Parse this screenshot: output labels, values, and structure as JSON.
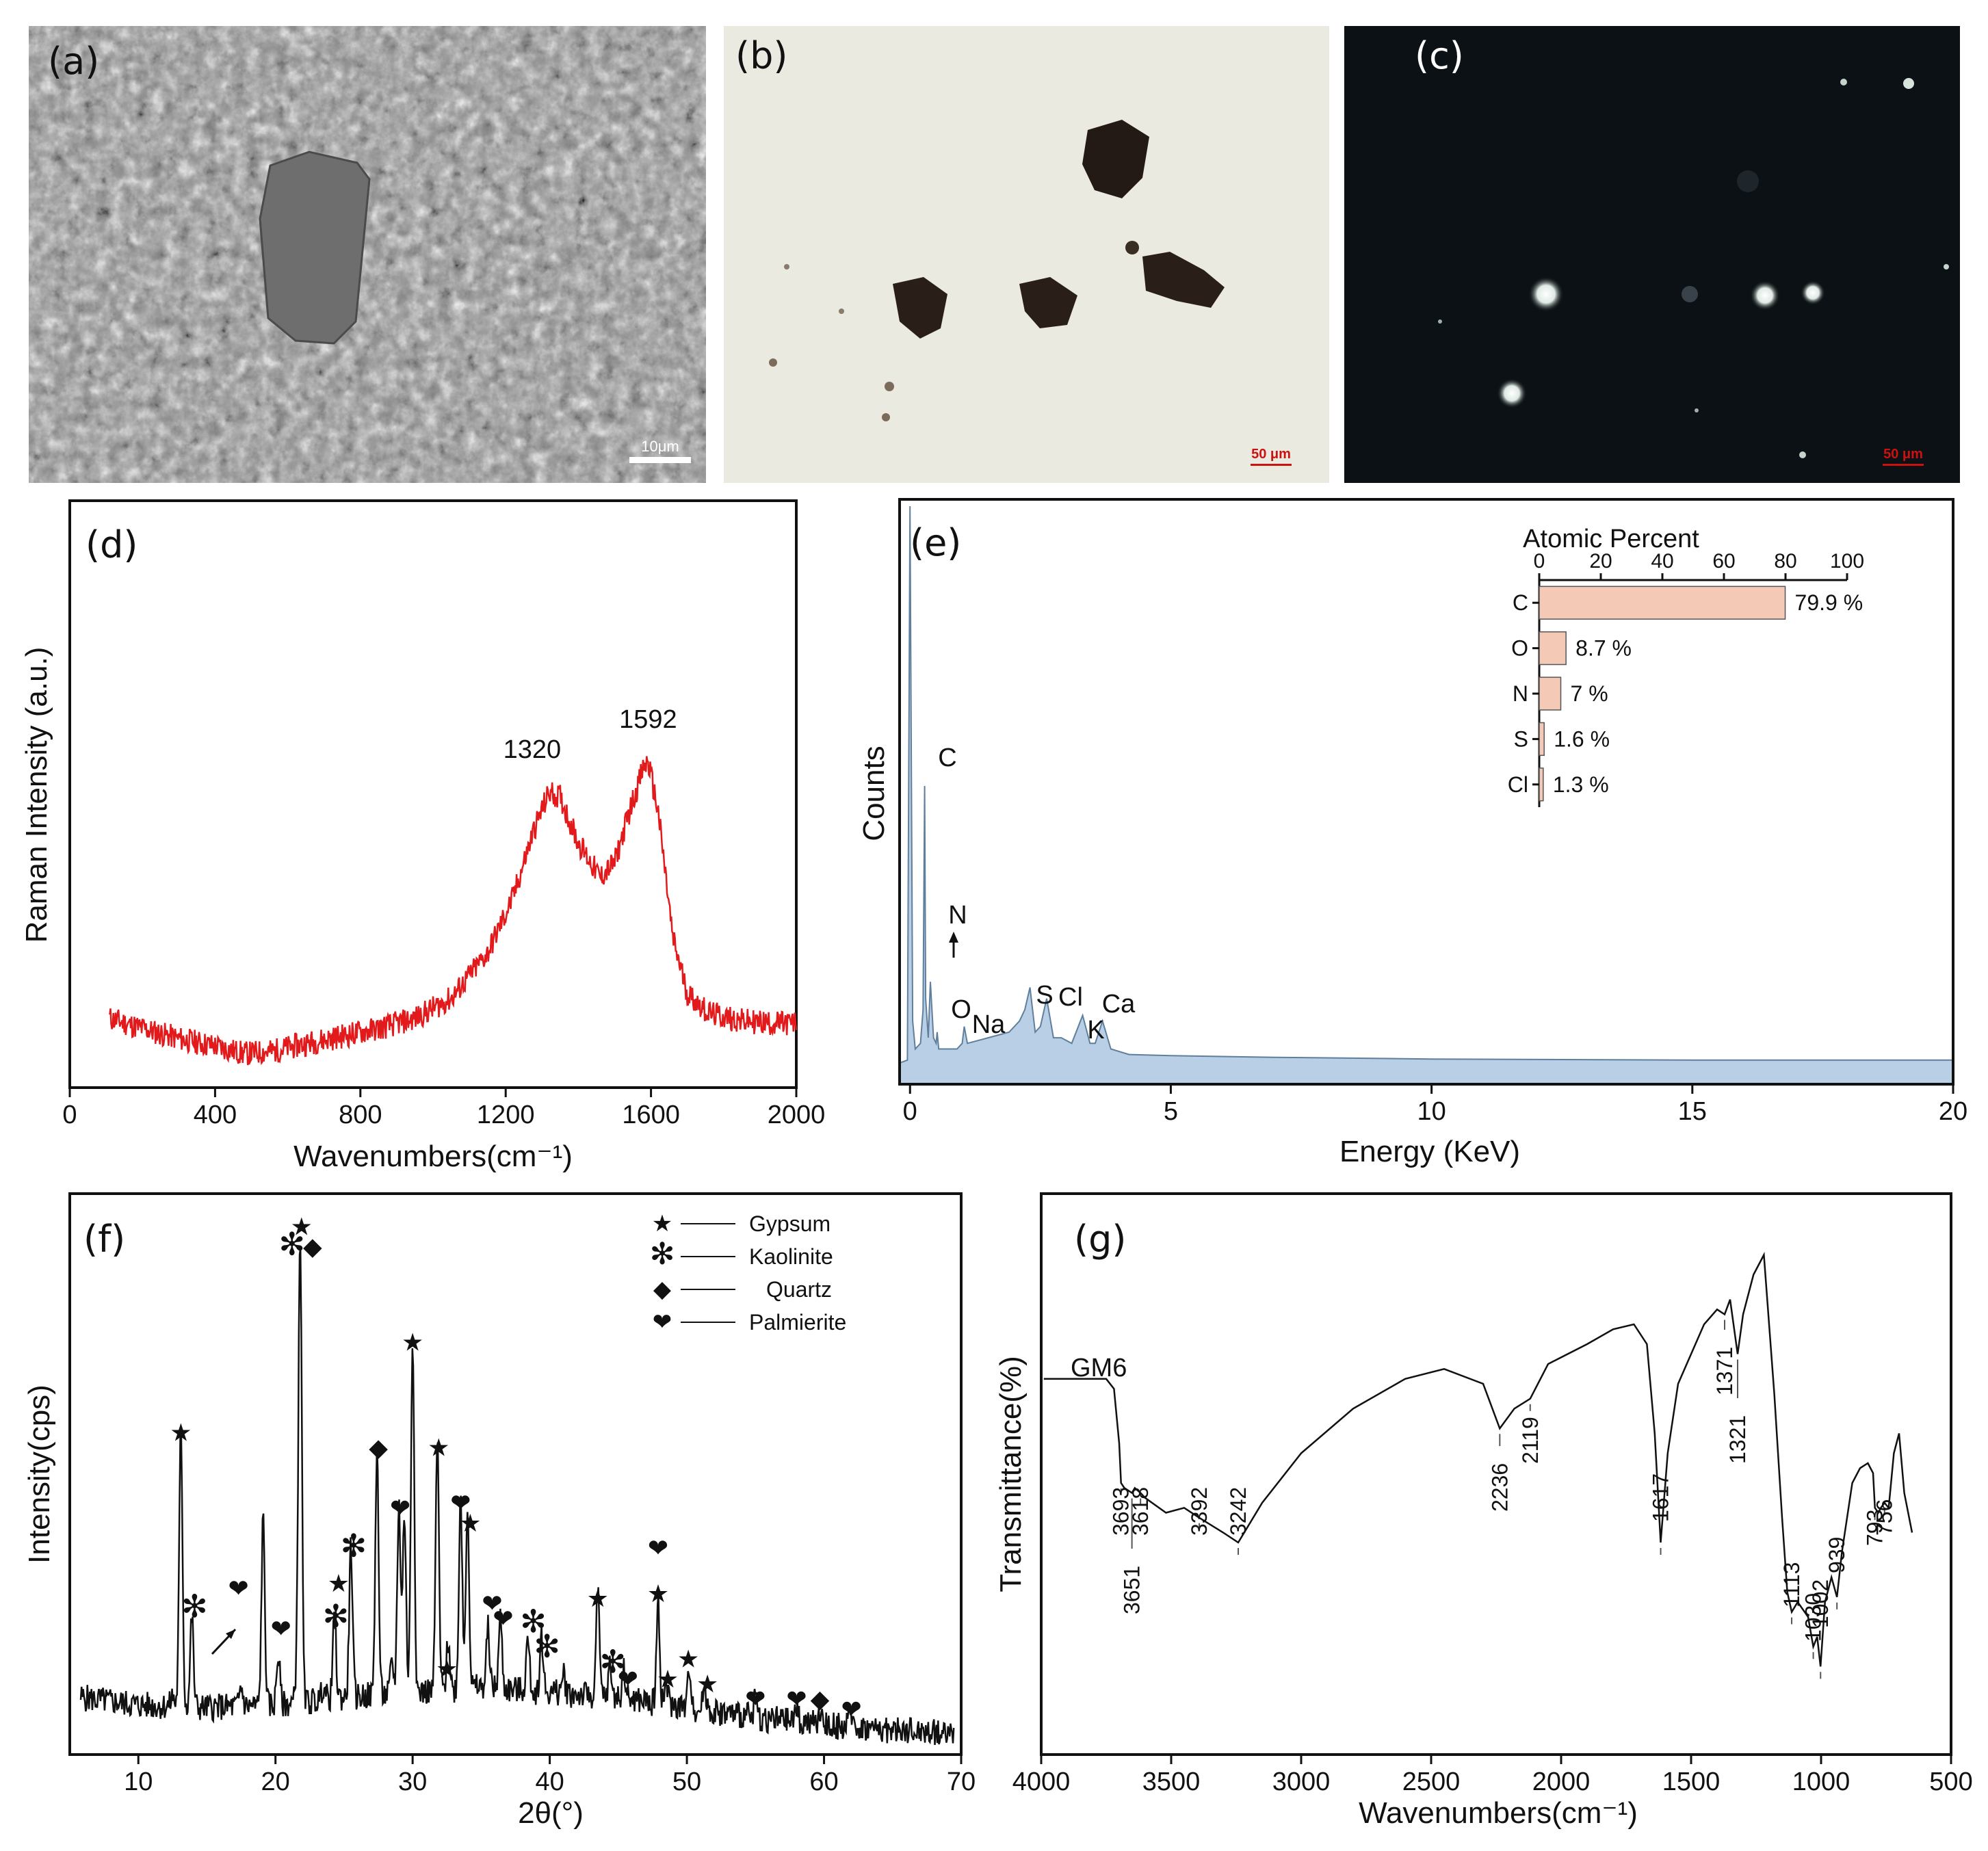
{
  "panels": {
    "a": {
      "label": "(a)",
      "scalebar": "10μm"
    },
    "b": {
      "label": "(b)",
      "scalebar": "50 μm"
    },
    "c": {
      "label": "(c)",
      "scalebar": "50 μm"
    }
  },
  "colors": {
    "raman": "#e31a1c",
    "eds_fill": "#b9cfe6",
    "eds_line": "#5f7f9c",
    "bar": "#f4c9b6"
  },
  "chart_data": [
    {
      "id": "d",
      "type": "line",
      "panel_label": "(d)",
      "xlabel": "Wavenumbers(cm⁻¹)",
      "ylabel": "Raman Intensity (a.u.)",
      "xlim": [
        0,
        2000
      ],
      "xticks": [
        0,
        400,
        800,
        1200,
        1600,
        2000
      ],
      "ylim": [
        0,
        1
      ],
      "series": [
        {
          "x": [
            110,
            200,
            300,
            400,
            480,
            560,
            650,
            750,
            850,
            950,
            1050,
            1150,
            1220,
            1280,
            1320,
            1350,
            1400,
            1460,
            1500,
            1540,
            1580,
            1592,
            1620,
            1660,
            1700,
            1760,
            1850,
            1950,
            2000
          ],
          "y": [
            0.09,
            0.07,
            0.05,
            0.035,
            0.02,
            0.025,
            0.04,
            0.055,
            0.07,
            0.09,
            0.13,
            0.22,
            0.33,
            0.47,
            0.54,
            0.53,
            0.44,
            0.37,
            0.4,
            0.5,
            0.59,
            0.6,
            0.5,
            0.25,
            0.14,
            0.1,
            0.085,
            0.08,
            0.08
          ]
        }
      ],
      "peak_labels": [
        {
          "x": 1320,
          "text": "1320"
        },
        {
          "x": 1592,
          "text": "1592"
        }
      ]
    },
    {
      "id": "e",
      "type": "area",
      "panel_label": "(e)",
      "xlabel": "Energy (KeV)",
      "ylabel": "Counts",
      "xlim": [
        -0.2,
        20
      ],
      "xticks": [
        0,
        5,
        10,
        15,
        20
      ],
      "ylim": [
        0,
        1
      ],
      "series": [
        {
          "x": [
            -0.2,
            -0.05,
            0.0,
            0.05,
            0.1,
            0.2,
            0.25,
            0.28,
            0.3,
            0.35,
            0.39,
            0.45,
            0.5,
            0.52,
            0.55,
            0.7,
            0.9,
            1.0,
            1.04,
            1.1,
            1.3,
            1.5,
            1.7,
            1.9,
            2.1,
            2.2,
            2.3,
            2.4,
            2.5,
            2.62,
            2.75,
            2.9,
            3.1,
            3.31,
            3.45,
            3.55,
            3.69,
            3.85,
            4.2,
            5,
            7,
            10,
            15,
            20
          ],
          "y": [
            0.005,
            0.01,
            1.0,
            0.08,
            0.03,
            0.04,
            0.1,
            0.5,
            0.12,
            0.05,
            0.15,
            0.05,
            0.04,
            0.06,
            0.03,
            0.03,
            0.03,
            0.04,
            0.07,
            0.04,
            0.045,
            0.05,
            0.055,
            0.06,
            0.08,
            0.1,
            0.14,
            0.06,
            0.07,
            0.12,
            0.05,
            0.05,
            0.04,
            0.09,
            0.04,
            0.04,
            0.08,
            0.03,
            0.02,
            0.018,
            0.015,
            0.012,
            0.01,
            0.01
          ]
        }
      ],
      "element_labels": [
        "C",
        "N",
        "O",
        "Na",
        "S",
        "Cl",
        "K",
        "Ca"
      ],
      "inset": {
        "type": "bar",
        "title": "Atomic Percent",
        "xlim": [
          0,
          100
        ],
        "xticks": [
          0,
          20,
          40,
          60,
          80,
          100
        ],
        "categories": [
          "C",
          "O",
          "N",
          "S",
          "Cl"
        ],
        "values": [
          79.9,
          8.7,
          7,
          1.6,
          1.3
        ],
        "value_labels": [
          "79.9 %",
          "8.7 %",
          "7 %",
          "1.6 %",
          "1.3 %"
        ]
      }
    },
    {
      "id": "f",
      "type": "line",
      "panel_label": "(f)",
      "xlabel": "2θ(°)",
      "ylabel": "Intensity(cps)",
      "xlim": [
        5,
        70
      ],
      "xticks": [
        10,
        20,
        30,
        40,
        50,
        60,
        70
      ],
      "ylim": [
        0,
        1
      ],
      "legend": {
        "position": "top-right",
        "entries": [
          {
            "symbol": "★",
            "label": "Gypsum"
          },
          {
            "symbol": "✻",
            "label": "Kaolinite"
          },
          {
            "symbol": "◆",
            "label": "Quartz"
          },
          {
            "symbol": "❤",
            "label": "Palmierite"
          }
        ]
      },
      "peaks": [
        [
          12.5,
          0.02
        ],
        [
          13.1,
          0.55
        ],
        [
          13.9,
          0.18
        ],
        [
          17.5,
          0.04
        ],
        [
          19.1,
          0.37
        ],
        [
          20.2,
          0.1
        ],
        [
          21.6,
          0.08
        ],
        [
          21.8,
          0.92
        ],
        [
          23.5,
          0.03
        ],
        [
          24.3,
          0.16
        ],
        [
          25.5,
          0.3
        ],
        [
          27.4,
          0.49
        ],
        [
          28.5,
          0.06
        ],
        [
          29.0,
          0.38
        ],
        [
          29.4,
          0.36
        ],
        [
          30.0,
          0.71
        ],
        [
          31.8,
          0.5
        ],
        [
          32.6,
          0.1
        ],
        [
          33.5,
          0.39
        ],
        [
          34.0,
          0.37
        ],
        [
          35.5,
          0.12
        ],
        [
          36.4,
          0.14
        ],
        [
          38.4,
          0.1
        ],
        [
          39.4,
          0.11
        ],
        [
          41.0,
          0.04
        ],
        [
          43.5,
          0.2
        ],
        [
          44.4,
          0.06
        ],
        [
          45.4,
          0.06
        ],
        [
          47.9,
          0.2
        ],
        [
          48.5,
          0.04
        ],
        [
          50.2,
          0.08
        ],
        [
          51.3,
          0.05
        ],
        [
          55.0,
          0.04
        ],
        [
          58.0,
          0.03
        ],
        [
          59.8,
          0.03
        ],
        [
          62.0,
          0.03
        ]
      ],
      "baseline": [
        [
          5.8,
          0.1
        ],
        [
          10,
          0.085
        ],
        [
          15,
          0.08
        ],
        [
          20,
          0.085
        ],
        [
          25,
          0.1
        ],
        [
          30,
          0.11
        ],
        [
          35,
          0.12
        ],
        [
          40,
          0.11
        ],
        [
          45,
          0.1
        ],
        [
          50,
          0.08
        ],
        [
          55,
          0.06
        ],
        [
          60,
          0.045
        ],
        [
          65,
          0.035
        ],
        [
          69.5,
          0.03
        ]
      ],
      "markers": [
        {
          "x": 13.1,
          "y": 0.61,
          "s": "★"
        },
        {
          "x": 14.1,
          "y": 0.26,
          "s": "✻"
        },
        {
          "x": 17.3,
          "y": 0.3,
          "s": "❤"
        },
        {
          "x": 20.4,
          "y": 0.22,
          "s": "❤"
        },
        {
          "x": 21.9,
          "y": 1.02,
          "s": "★"
        },
        {
          "x": 21.2,
          "y": 0.98,
          "s": "✻"
        },
        {
          "x": 22.7,
          "y": 0.98,
          "s": "◆"
        },
        {
          "x": 24.4,
          "y": 0.24,
          "s": "✻"
        },
        {
          "x": 24.6,
          "y": 0.31,
          "s": "★"
        },
        {
          "x": 25.7,
          "y": 0.38,
          "s": "✻"
        },
        {
          "x": 27.5,
          "y": 0.58,
          "s": "◆"
        },
        {
          "x": 29.1,
          "y": 0.46,
          "s": "❤"
        },
        {
          "x": 30.0,
          "y": 0.79,
          "s": "★"
        },
        {
          "x": 31.9,
          "y": 0.58,
          "s": "★"
        },
        {
          "x": 32.5,
          "y": 0.14,
          "s": "★"
        },
        {
          "x": 33.5,
          "y": 0.47,
          "s": "❤"
        },
        {
          "x": 34.2,
          "y": 0.43,
          "s": "★"
        },
        {
          "x": 35.8,
          "y": 0.27,
          "s": "❤"
        },
        {
          "x": 36.6,
          "y": 0.24,
          "s": "❤"
        },
        {
          "x": 38.8,
          "y": 0.23,
          "s": "✻"
        },
        {
          "x": 39.8,
          "y": 0.18,
          "s": "✻"
        },
        {
          "x": 43.5,
          "y": 0.28,
          "s": "★"
        },
        {
          "x": 44.6,
          "y": 0.15,
          "s": "✻"
        },
        {
          "x": 45.7,
          "y": 0.12,
          "s": "❤"
        },
        {
          "x": 47.9,
          "y": 0.38,
          "s": "❤"
        },
        {
          "x": 47.9,
          "y": 0.29,
          "s": "★"
        },
        {
          "x": 48.6,
          "y": 0.12,
          "s": "★"
        },
        {
          "x": 50.1,
          "y": 0.16,
          "s": "★"
        },
        {
          "x": 51.5,
          "y": 0.11,
          "s": "★"
        },
        {
          "x": 55.0,
          "y": 0.08,
          "s": "❤"
        },
        {
          "x": 58.0,
          "y": 0.08,
          "s": "❤"
        },
        {
          "x": 59.7,
          "y": 0.08,
          "s": "◆"
        },
        {
          "x": 62.0,
          "y": 0.06,
          "s": "❤"
        }
      ]
    },
    {
      "id": "g",
      "type": "line",
      "panel_label": "(g)",
      "xlabel": "Wavenumbers(cm⁻¹)",
      "ylabel": "Transmittance(%)",
      "xlim": [
        4000,
        500
      ],
      "xticks": [
        4000,
        3500,
        3000,
        2500,
        2000,
        1500,
        1000,
        500
      ],
      "ylim": [
        0,
        1
      ],
      "series": [
        {
          "name": "GM6",
          "x": [
            3990,
            3750,
            3720,
            3700,
            3693,
            3680,
            3651,
            3640,
            3618,
            3600,
            3520,
            3450,
            3392,
            3300,
            3242,
            3150,
            3000,
            2800,
            2600,
            2450,
            2300,
            2236,
            2180,
            2119,
            2050,
            1900,
            1800,
            1720,
            1670,
            1640,
            1617,
            1590,
            1550,
            1500,
            1450,
            1400,
            1371,
            1350,
            1321,
            1300,
            1260,
            1220,
            1180,
            1150,
            1130,
            1113,
            1090,
            1050,
            1030,
            1015,
            1002,
            985,
            960,
            939,
            920,
            880,
            850,
            820,
            800,
            793,
            780,
            770,
            756,
            740,
            720,
            700,
            680,
            650
          ],
          "y": [
            0.73,
            0.73,
            0.71,
            0.6,
            0.52,
            0.51,
            0.5,
            0.51,
            0.5,
            0.49,
            0.46,
            0.47,
            0.45,
            0.42,
            0.4,
            0.48,
            0.58,
            0.67,
            0.73,
            0.75,
            0.72,
            0.63,
            0.67,
            0.69,
            0.76,
            0.8,
            0.83,
            0.84,
            0.8,
            0.62,
            0.4,
            0.58,
            0.72,
            0.78,
            0.84,
            0.87,
            0.86,
            0.89,
            0.78,
            0.86,
            0.94,
            0.98,
            0.7,
            0.45,
            0.3,
            0.26,
            0.28,
            0.25,
            0.19,
            0.21,
            0.15,
            0.28,
            0.33,
            0.29,
            0.38,
            0.52,
            0.55,
            0.56,
            0.54,
            0.47,
            0.46,
            0.47,
            0.48,
            0.47,
            0.58,
            0.62,
            0.5,
            0.42
          ]
        }
      ],
      "peak_labels": [
        "3693",
        "3651",
        "3618",
        "3392",
        "3242",
        "2236",
        "2119",
        "1617",
        "1371",
        "1321",
        "1113",
        "1030",
        "1002",
        "939",
        "793",
        "756"
      ]
    }
  ]
}
